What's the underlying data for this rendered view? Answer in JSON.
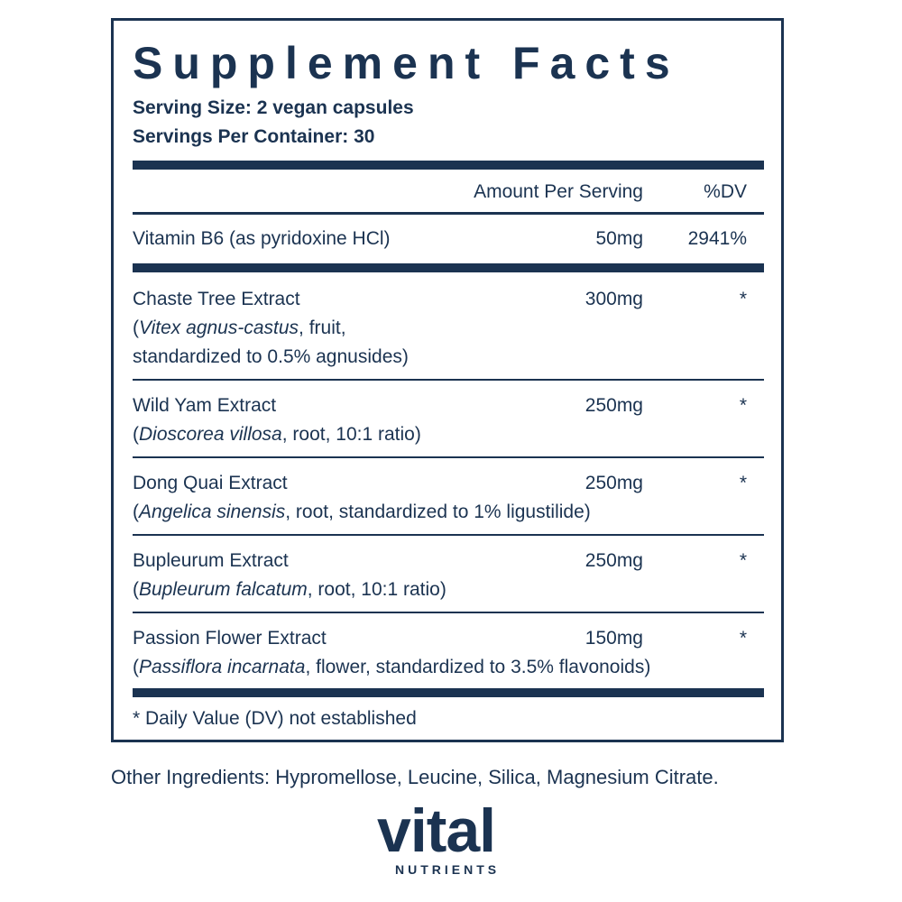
{
  "header": {
    "title": "Supplement Facts",
    "serving_size": "Serving Size: 2 vegan capsules",
    "servings_per_container": "Servings Per Container: 30"
  },
  "table": {
    "columns": [
      "Amount Per Serving",
      "%DV"
    ],
    "vitamins": [
      {
        "name": "Vitamin B6 (as pyridoxine HCl)",
        "amount": "50mg",
        "dv": "2941%"
      }
    ],
    "ingredients": [
      {
        "name": "Chaste Tree Extract",
        "amount": "300mg",
        "dv": "*",
        "description": [
          [
            {
              "text": "(",
              "italic": false
            },
            {
              "text": "Vitex agnus-castus",
              "italic": true
            },
            {
              "text": ", fruit,",
              "italic": false
            }
          ],
          [
            {
              "text": "standardized to 0.5% agnusides)",
              "italic": false
            }
          ]
        ]
      },
      {
        "name": "Wild Yam Extract",
        "amount": "250mg",
        "dv": "*",
        "description": [
          [
            {
              "text": "(",
              "italic": false
            },
            {
              "text": "Dioscorea villosa",
              "italic": true
            },
            {
              "text": ", root, 10:1 ratio)",
              "italic": false
            }
          ]
        ]
      },
      {
        "name": "Dong Quai Extract",
        "amount": "250mg",
        "dv": "*",
        "description": [
          [
            {
              "text": "(",
              "italic": false
            },
            {
              "text": "Angelica sinensis",
              "italic": true
            },
            {
              "text": ", root, standardized to 1% ligustilide)",
              "italic": false
            }
          ]
        ]
      },
      {
        "name": "Bupleurum Extract",
        "amount": "250mg",
        "dv": "*",
        "description": [
          [
            {
              "text": "(",
              "italic": false
            },
            {
              "text": "Bupleurum falcatum",
              "italic": true
            },
            {
              "text": ", root, 10:1 ratio)",
              "italic": false
            }
          ]
        ]
      },
      {
        "name": "Passion Flower Extract",
        "amount": "150mg",
        "dv": "*",
        "description": [
          [
            {
              "text": "(",
              "italic": false
            },
            {
              "text": "Passiflora incarnata",
              "italic": true
            },
            {
              "text": ", flower, standardized to 3.5% flavonoids)",
              "italic": false
            }
          ]
        ]
      }
    ],
    "footnote": "* Daily Value (DV) not established"
  },
  "other_ingredients": "Other Ingredients: Hypromellose, Leucine, Silica, Magnesium Citrate.",
  "brand": {
    "name": "vital",
    "tagline": "NUTRIENTS"
  }
}
